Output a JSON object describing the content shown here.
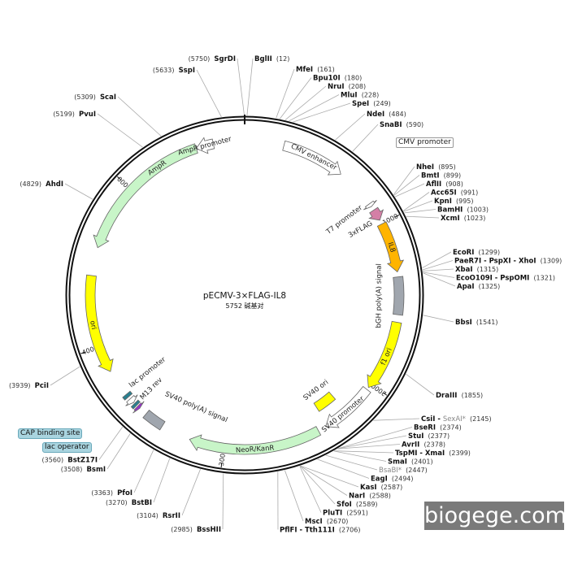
{
  "plasmid": {
    "name": "pECMV-3×FLAG-IL8",
    "size_label": "5752 碱基对",
    "length_bp": 5752
  },
  "ticks": [
    {
      "pos": 1000,
      "label": "1000"
    },
    {
      "pos": 2000,
      "label": "2000"
    },
    {
      "pos": 3000,
      "label": "3000"
    },
    {
      "pos": 4000,
      "label": "4000"
    },
    {
      "pos": 5000,
      "label": "5000"
    }
  ],
  "features": [
    {
      "name": "CMV enhancer",
      "start": 235,
      "end": 615,
      "dir": 1,
      "color": "#ffffff",
      "kind": "arrow"
    },
    {
      "name": "T7 promoter",
      "start": 860,
      "end": 880,
      "dir": 1,
      "color": "#ffffff",
      "kind": "arrow"
    },
    {
      "name": "3xFLAG",
      "start": 905,
      "end": 975,
      "dir": 1,
      "color": "#d47fa6",
      "kind": "arrow"
    },
    {
      "name": "IL8",
      "start": 1000,
      "end": 1300,
      "dir": 1,
      "color": "#ffb400",
      "kind": "arrow"
    },
    {
      "name": "bGH poly(A) signal",
      "start": 1330,
      "end": 1555,
      "dir": 0,
      "color": "#a0a6ae",
      "kind": "box"
    },
    {
      "name": "f1 ori",
      "start": 1600,
      "end": 2025,
      "dir": 1,
      "color": "#ffff00",
      "kind": "arrow"
    },
    {
      "name": "SV40 promoter",
      "start": 2040,
      "end": 2370,
      "dir": 1,
      "color": "#ffffff",
      "kind": "arrow"
    },
    {
      "name": "SV40 ori",
      "start": 2220,
      "end": 2355,
      "dir": 0,
      "color": "#ffff00",
      "kind": "innerbox"
    },
    {
      "name": "NeoR/KanR",
      "start": 2420,
      "end": 3210,
      "dir": 1,
      "color": "#c8f5c8",
      "kind": "arrow"
    },
    {
      "name": "SV40 poly(A) signal",
      "start": 3390,
      "end": 3510,
      "dir": 0,
      "color": "#a0a6ae",
      "kind": "box"
    },
    {
      "name": "M13 rev",
      "start": 3560,
      "end": 3577,
      "dir": -1,
      "color": "#9933cc",
      "kind": "arrow"
    },
    {
      "name": "lac operator",
      "start": 3585,
      "end": 3602,
      "dir": 0,
      "color": "#2a8090",
      "kind": "box"
    },
    {
      "name": "lac promoter",
      "start": 3610,
      "end": 3640,
      "dir": -1,
      "color": "#ffffff",
      "kind": "arrow"
    },
    {
      "name": "CAP binding site",
      "start": 3655,
      "end": 3675,
      "dir": 0,
      "color": "#2a8090",
      "kind": "box"
    },
    {
      "name": "ori",
      "start": 3840,
      "end": 4430,
      "dir": -1,
      "color": "#ffff00",
      "kind": "arrow"
    },
    {
      "name": "AmpR",
      "start": 4600,
      "end": 5460,
      "dir": -1,
      "color": "#c8f5c8",
      "kind": "arrow"
    },
    {
      "name": "AmpR promoter",
      "start": 5460,
      "end": 5565,
      "dir": -1,
      "color": "#ffffff",
      "kind": "arrow"
    }
  ],
  "callouts": {
    "cmv_promoter": "CMV promoter",
    "cap_binding_site": "CAP binding site",
    "lac_operator": "lac operator"
  },
  "enzymes": [
    {
      "name": "BglII",
      "pos": "(12)",
      "bp": 12
    },
    {
      "name": "MfeI",
      "pos": "(161)",
      "bp": 161
    },
    {
      "name": "Bpu10I",
      "pos": "(180)",
      "bp": 180
    },
    {
      "name": "NruI",
      "pos": "(208)",
      "bp": 208
    },
    {
      "name": "MluI",
      "pos": "(228)",
      "bp": 228
    },
    {
      "name": "SpeI",
      "pos": "(249)",
      "bp": 249
    },
    {
      "name": "NdeI",
      "pos": "(484)",
      "bp": 484
    },
    {
      "name": "SnaBI",
      "pos": "(590)",
      "bp": 590
    },
    {
      "name": "NheI",
      "pos": "(895)",
      "bp": 895
    },
    {
      "name": "BmtI",
      "pos": "(899)",
      "bp": 899
    },
    {
      "name": "AflII",
      "pos": "(908)",
      "bp": 908
    },
    {
      "name": "Acc65I",
      "pos": "(991)",
      "bp": 991
    },
    {
      "name": "KpnI",
      "pos": "(995)",
      "bp": 995
    },
    {
      "name": "BamHI",
      "pos": "(1003)",
      "bp": 1003
    },
    {
      "name": "XcmI",
      "pos": "(1023)",
      "bp": 1023
    },
    {
      "name": "EcoRI",
      "pos": "(1299)",
      "bp": 1299
    },
    {
      "name": "PaeR7I - PspXI - XhoI",
      "pos": "(1309)",
      "bp": 1309
    },
    {
      "name": "XbaI",
      "pos": "(1315)",
      "bp": 1315
    },
    {
      "name": "EcoO109I - PspOMI",
      "pos": "(1321)",
      "bp": 1321
    },
    {
      "name": "ApaI",
      "pos": "(1325)",
      "bp": 1325
    },
    {
      "name": "BbsI",
      "pos": "(1541)",
      "bp": 1541
    },
    {
      "name": "DraIII",
      "pos": "(1855)",
      "bp": 1855
    },
    {
      "name": "CsiI",
      "extra": "SexAI*",
      "pos": "(2145)",
      "bp": 2145
    },
    {
      "name": "BseRI",
      "pos": "(2374)",
      "bp": 2374
    },
    {
      "name": "StuI",
      "pos": "(2377)",
      "bp": 2377
    },
    {
      "name": "AvrII",
      "pos": "(2378)",
      "bp": 2378
    },
    {
      "name": "TspMI - XmaI",
      "pos": "(2399)",
      "bp": 2399
    },
    {
      "name": "SmaI",
      "pos": "(2401)",
      "bp": 2401
    },
    {
      "name": "BsaBI*",
      "pos": "(2447)",
      "bp": 2447,
      "muted": true
    },
    {
      "name": "EagI",
      "pos": "(2494)",
      "bp": 2494
    },
    {
      "name": "KasI",
      "pos": "(2587)",
      "bp": 2587
    },
    {
      "name": "NarI",
      "pos": "(2588)",
      "bp": 2588
    },
    {
      "name": "SfoI",
      "pos": "(2589)",
      "bp": 2589
    },
    {
      "name": "PluTI",
      "pos": "(2591)",
      "bp": 2591
    },
    {
      "name": "MscI",
      "pos": "(2670)",
      "bp": 2670
    },
    {
      "name": "PflFI - Tth111I",
      "pos": "(2706)",
      "bp": 2706
    },
    {
      "name": "BssHII",
      "pos": "(2985)",
      "bp": 2985
    },
    {
      "name": "RsrII",
      "pos": "(3104)",
      "bp": 3104
    },
    {
      "name": "BstBI",
      "pos": "(3270)",
      "bp": 3270
    },
    {
      "name": "PfoI",
      "pos": "(3363)",
      "bp": 3363
    },
    {
      "name": "BsmI",
      "pos": "(3508)",
      "bp": 3508
    },
    {
      "name": "BstZ17I",
      "pos": "(3560)",
      "bp": 3560
    },
    {
      "name": "PciI",
      "pos": "(3939)",
      "bp": 3939
    },
    {
      "name": "AhdI",
      "pos": "(4829)",
      "bp": 4829
    },
    {
      "name": "PvuI",
      "pos": "(5199)",
      "bp": 5199
    },
    {
      "name": "ScaI",
      "pos": "(5309)",
      "bp": 5309
    },
    {
      "name": "SspI",
      "pos": "(5633)",
      "bp": 5633
    },
    {
      "name": "SgrDI",
      "pos": "(5750)",
      "bp": 5750
    }
  ],
  "watermark": "biogege.com"
}
